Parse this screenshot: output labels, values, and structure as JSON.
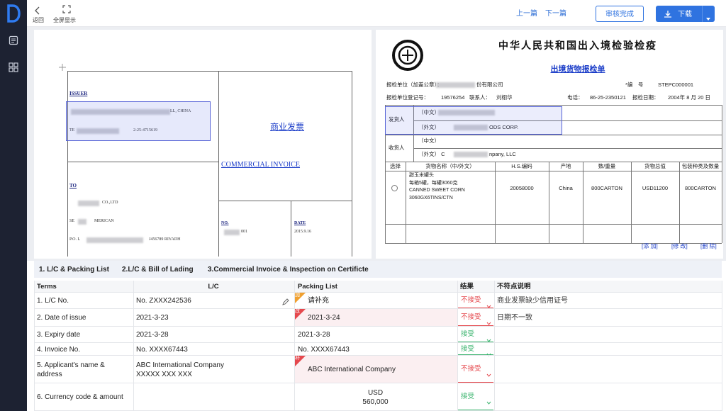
{
  "toolbar": {
    "back": "返回",
    "fullscreen": "全屏显示",
    "prev": "上一篇",
    "next": "下一篇",
    "approve": "审核完成",
    "download": "下载"
  },
  "invoice": {
    "issuer_label": "ISSUER",
    "issuer_line1": "LL, CHINA",
    "issuer_tel_prefix": "TE",
    "issuer_tel": "2-25-4715619",
    "title_cn": "商业发票",
    "title_en": "COMMERCIAL INVOICE",
    "to_label": "TO",
    "to_line1": "CO.,LTD",
    "to_line2a": "SE",
    "to_line2b": "MERICAN",
    "to_line3a": "P.O. L",
    "to_line3b": "J456789 RIYADH",
    "no_label": "NO.",
    "no_value": "001",
    "date_label": "DATE",
    "date_value": "2015.9.16"
  },
  "inspection_form": {
    "title": "中华人民共和国出入境检验检疫",
    "subtitle": "出境货物报检单",
    "applicant_label": "报检单位（加盖公章）：",
    "applicant_value": "份有限公司",
    "number_label": "*编　号",
    "number_value": "STEPC000001",
    "reg_label": "报检单位登记号：",
    "reg_value": "19576254",
    "contact_label": "联系人：",
    "contact_value": "刘栩华",
    "phone_label": "电话：",
    "phone_value": "86-25-2350121",
    "date_label": "报检日期：",
    "date_value": "2004年 8 月 20 日",
    "consignor_label": "发货人",
    "consignor_cn": "（中文）",
    "consignor_en": "（外文）",
    "consignor_en_value": "ODS CORP.",
    "consignee_label": "收货人",
    "consignee_cn": "（中文）",
    "consignee_en": "（外文）  C",
    "consignee_en_value": "npany, LLC",
    "goods_headers": [
      "选择",
      "货物名称（中/外文）",
      "H.S.编码",
      "产地",
      "数/重量",
      "货物总值",
      "包装种类及数量"
    ],
    "goods_row": {
      "name_lines": [
        "甜玉米罐头",
        "每箱5罐，每罐3060克",
        "CANNED SWEET CORN",
        "3060GX6TINS/CTN"
      ],
      "hs": "20058000",
      "origin": "China",
      "quantity": "800CARTON",
      "value": "USD11200",
      "packing": "800CARTON"
    },
    "actions": [
      "[添 加]",
      "[修 改]",
      "[删 除]"
    ]
  },
  "tabs": [
    "1. L/C & Packing List",
    "2.L/C & Bill of Lading",
    "3.Commercial Invoice & Inspection on Certificte"
  ],
  "table": {
    "headers": [
      "Terms",
      "L/C",
      "Packing List",
      "结果",
      "不符点说明"
    ],
    "rows": [
      {
        "term": "1. L/C No.",
        "lc": [
          "No. ZXXX242536"
        ],
        "lc_editable": true,
        "pl_tag": "加",
        "pl_tag_color": "#f0a030",
        "pl": [
          "请补充"
        ],
        "result": "不接受",
        "result_color": "#e5484d",
        "note": "商业发票缺少信用证号"
      },
      {
        "term": "2. Date of issue",
        "lc": [
          "2021-3-23"
        ],
        "pl_tag": "改",
        "pl_tag_color": "#e5484d",
        "pl_bg": "#fbeff1",
        "pl": [
          "2021-3-24"
        ],
        "result": "不接受",
        "result_color": "#e5484d",
        "note": "日期不一致"
      },
      {
        "term": "3. Expiry date",
        "lc": [
          "2021-3-28"
        ],
        "pl": [
          "2021-3-28"
        ],
        "result": "接受",
        "result_color": "#3bb46e"
      },
      {
        "term": "4. Invoice No.",
        "lc": [
          "No. XXXX67443"
        ],
        "pl": [
          "No. XXXX67443"
        ],
        "result": "接受",
        "result_color": "#3bb46e"
      },
      {
        "term": "5. Applicant's name & address",
        "lc": [
          "ABC International Company",
          "XXXXX XXX XXX"
        ],
        "pl_tag": "补",
        "pl_tag_color": "#e5484d",
        "pl_bg": "#fbeff1",
        "pl": [
          "ABC International Company"
        ],
        "result": "不接受",
        "result_color": "#e5484d"
      },
      {
        "term": "6. Currency code & amount",
        "pl": [
          "USD",
          "560,000"
        ],
        "pl_align": "center",
        "result": "接受",
        "result_color": "#3bb46e"
      }
    ]
  }
}
